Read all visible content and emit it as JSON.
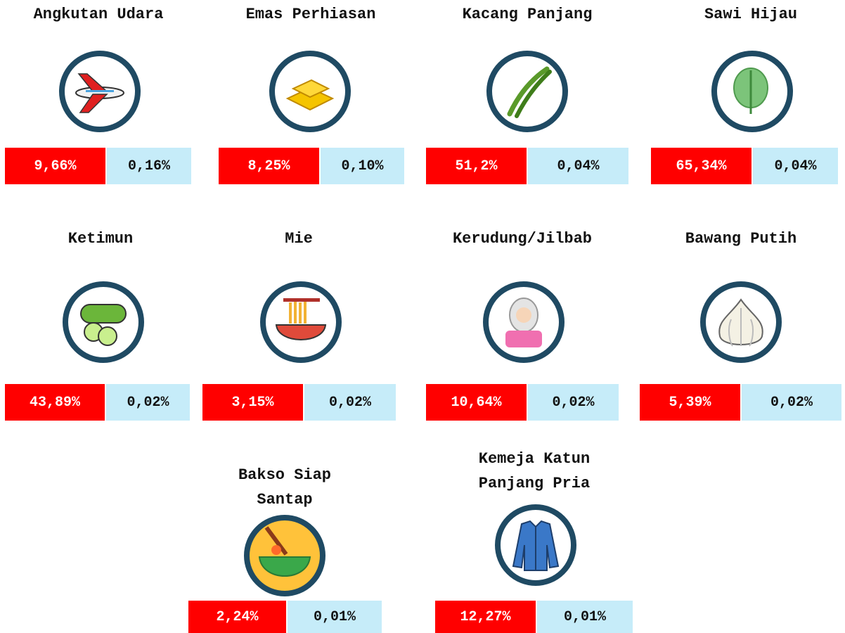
{
  "items": [
    {
      "name": "Angkutan Udara",
      "red": "9,66%",
      "blue": "0,16%"
    },
    {
      "name": "Emas Perhiasan",
      "red": "8,25%",
      "blue": "0,10%"
    },
    {
      "name": "Kacang Panjang",
      "red": "51,2%",
      "blue": "0,04%"
    },
    {
      "name": "Sawi Hijau",
      "red": "65,34%",
      "blue": "0,04%"
    },
    {
      "name": "Ketimun",
      "red": "43,89%",
      "blue": "0,02%"
    },
    {
      "name": "Mie",
      "red": "3,15%",
      "blue": "0,02%"
    },
    {
      "name": "Kerudung/Jilbab",
      "red": "10,64%",
      "blue": "0,02%"
    },
    {
      "name": "Bawang Putih",
      "red": "5,39%",
      "blue": "0,02%"
    },
    {
      "name": "Bakso Siap Santap",
      "red": "2,24%",
      "blue": "0,01%"
    },
    {
      "name": "Kemeja Katun Panjang Pria",
      "red": "12,27%",
      "blue": "0,01%"
    }
  ]
}
